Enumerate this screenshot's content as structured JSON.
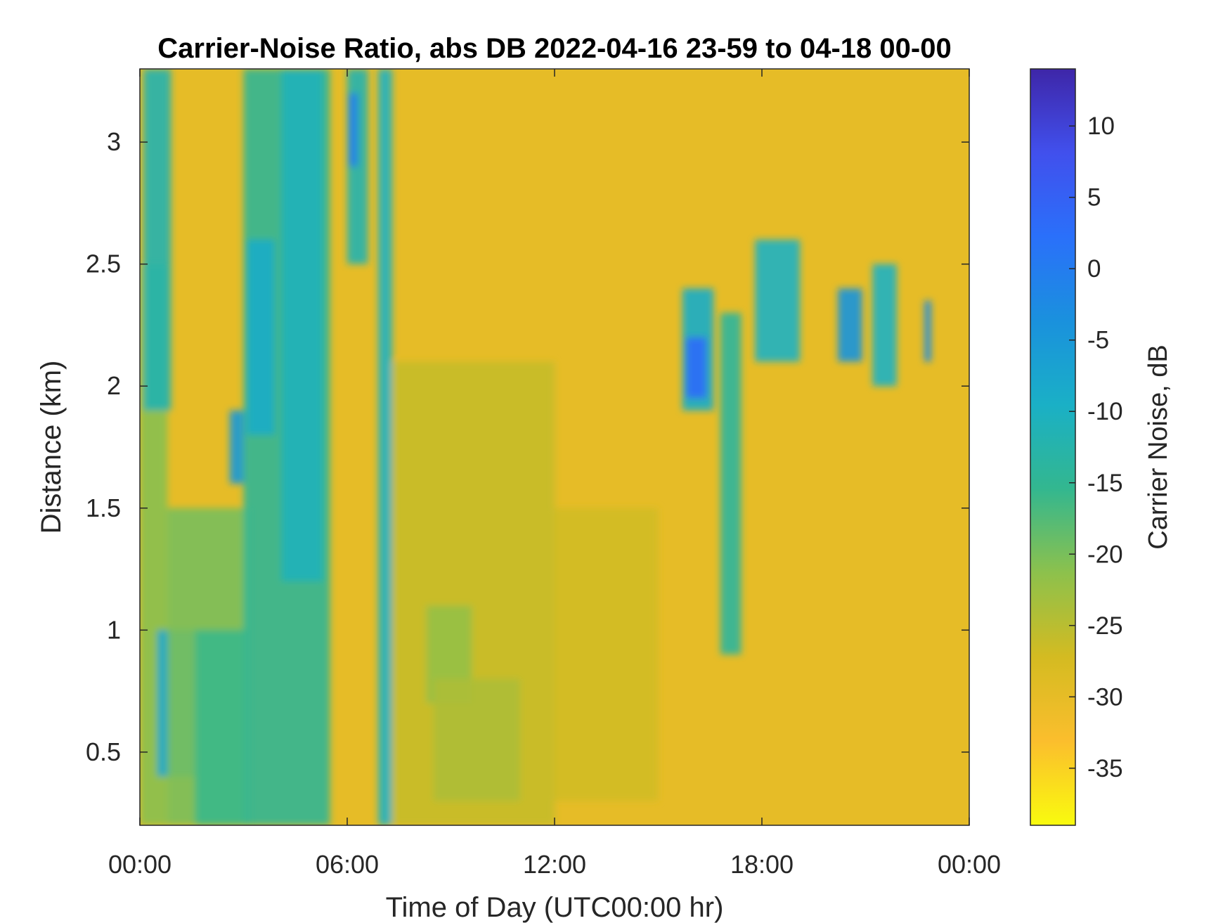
{
  "chart_data": {
    "type": "heatmap",
    "title": "Carrier-Noise Ratio, abs DB 2022-04-16 23-59 to 04-18 00-00",
    "xlabel": "Time of Day (UTC00:00 hr)",
    "ylabel": "Distance (km)",
    "x_unit": "hours",
    "xlim": [
      0,
      24
    ],
    "ylim": [
      0.2,
      3.3
    ],
    "x_ticks": [
      {
        "value": 0,
        "label": "00:00"
      },
      {
        "value": 6,
        "label": "06:00"
      },
      {
        "value": 12,
        "label": "12:00"
      },
      {
        "value": 18,
        "label": "18:00"
      },
      {
        "value": 24,
        "label": "00:00"
      }
    ],
    "y_ticks": [
      {
        "value": 0.5,
        "label": "0.5"
      },
      {
        "value": 1,
        "label": "1"
      },
      {
        "value": 1.5,
        "label": "1.5"
      },
      {
        "value": 2,
        "label": "2"
      },
      {
        "value": 2.5,
        "label": "2.5"
      },
      {
        "value": 3,
        "label": "3"
      }
    ],
    "colorbar": {
      "label": "Carrier Noise, dB",
      "range": [
        -39,
        14
      ],
      "ticks": [
        {
          "value": 10,
          "label": "10"
        },
        {
          "value": 5,
          "label": "5"
        },
        {
          "value": 0,
          "label": "0"
        },
        {
          "value": -5,
          "label": "-5"
        },
        {
          "value": -10,
          "label": "-10"
        },
        {
          "value": -15,
          "label": "-15"
        },
        {
          "value": -20,
          "label": "-20"
        },
        {
          "value": -25,
          "label": "-25"
        },
        {
          "value": -30,
          "label": "-30"
        },
        {
          "value": -35,
          "label": "-35"
        }
      ],
      "colormap": "parula",
      "colormap_stops": [
        "#f9fb0e",
        "#fbbe2d",
        "#d4bb21",
        "#8dc14c",
        "#33b78f",
        "#1ab0c6",
        "#1a91dd",
        "#2a70fa",
        "#4150ed",
        "#3e26a8"
      ]
    },
    "background_value": -30,
    "regions": [
      {
        "x": [
          0.0,
          0.8
        ],
        "y": [
          0.2,
          2.5
        ],
        "value": -21
      },
      {
        "x": [
          0.1,
          0.9
        ],
        "y": [
          1.9,
          3.3
        ],
        "value": -12
      },
      {
        "x": [
          0.5,
          1.6
        ],
        "y": [
          0.4,
          1.0
        ],
        "value": -8
      },
      {
        "x": [
          0.8,
          3.2
        ],
        "y": [
          0.2,
          1.5
        ],
        "value": -20
      },
      {
        "x": [
          1.6,
          3.0
        ],
        "y": [
          0.2,
          1.0
        ],
        "value": -16
      },
      {
        "x": [
          2.6,
          3.0
        ],
        "y": [
          1.6,
          1.9
        ],
        "value": -5
      },
      {
        "x": [
          3.0,
          5.5
        ],
        "y": [
          0.2,
          3.3
        ],
        "value": -15
      },
      {
        "x": [
          3.1,
          3.9
        ],
        "y": [
          1.8,
          2.6
        ],
        "value": -9
      },
      {
        "x": [
          4.1,
          5.3
        ],
        "y": [
          1.2,
          3.3
        ],
        "value": -11
      },
      {
        "x": [
          6.0,
          6.6
        ],
        "y": [
          2.5,
          3.3
        ],
        "value": -12
      },
      {
        "x": [
          6.05,
          6.3
        ],
        "y": [
          2.9,
          3.2
        ],
        "value": 0
      },
      {
        "x": [
          6.9,
          7.3
        ],
        "y": [
          0.2,
          3.3
        ],
        "value": -10
      },
      {
        "x": [
          7.3,
          12.0
        ],
        "y": [
          0.2,
          2.1
        ],
        "value": -26
      },
      {
        "x": [
          8.3,
          9.6
        ],
        "y": [
          0.7,
          1.1
        ],
        "value": -22
      },
      {
        "x": [
          8.5,
          11.0
        ],
        "y": [
          0.3,
          0.8
        ],
        "value": -24
      },
      {
        "x": [
          12.0,
          15.0
        ],
        "y": [
          0.3,
          1.5
        ],
        "value": -27
      },
      {
        "x": [
          15.7,
          16.6
        ],
        "y": [
          1.9,
          2.4
        ],
        "value": -9
      },
      {
        "x": [
          15.8,
          16.4
        ],
        "y": [
          1.95,
          2.2
        ],
        "value": 3
      },
      {
        "x": [
          16.8,
          17.4
        ],
        "y": [
          0.9,
          2.3
        ],
        "value": -14
      },
      {
        "x": [
          17.8,
          19.1
        ],
        "y": [
          2.1,
          2.6
        ],
        "value": -10
      },
      {
        "x": [
          20.2,
          20.9
        ],
        "y": [
          2.1,
          2.4
        ],
        "value": -4
      },
      {
        "x": [
          21.2,
          21.9
        ],
        "y": [
          2.0,
          2.5
        ],
        "value": -10
      },
      {
        "x": [
          22.7,
          22.9
        ],
        "y": [
          2.1,
          2.35
        ],
        "value": -3
      }
    ]
  }
}
